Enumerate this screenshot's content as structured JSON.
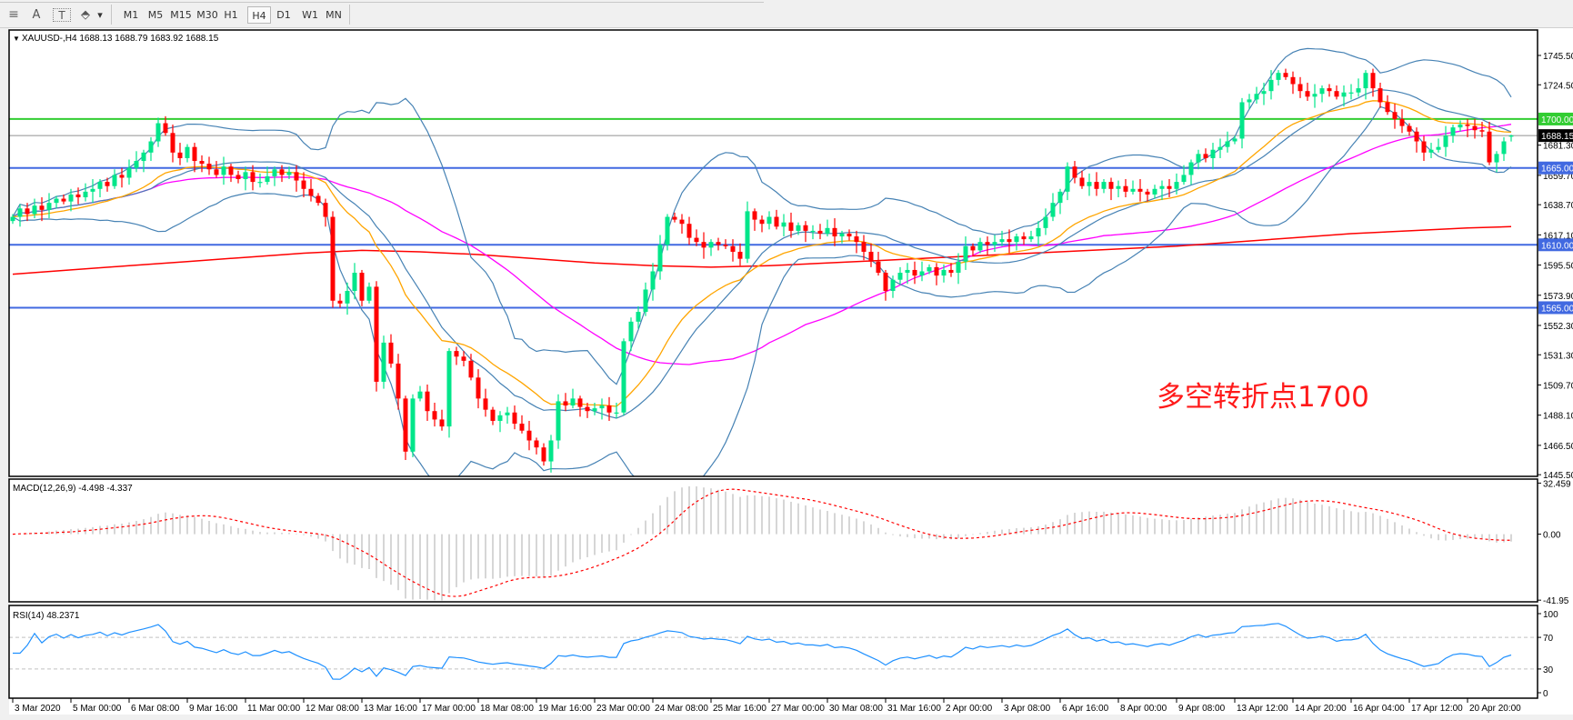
{
  "toolbar": {
    "tools": [
      {
        "name": "fibonacci-icon",
        "glyph": "≡"
      },
      {
        "name": "text-icon",
        "glyph": "A"
      },
      {
        "name": "text-label-icon",
        "glyph": "T"
      },
      {
        "name": "arrows-icon",
        "glyph": "⬘"
      }
    ],
    "dropdown_glyph": "▾",
    "timeframes": [
      "M1",
      "M5",
      "M15",
      "M30",
      "H1",
      "H4",
      "D1",
      "W1",
      "MN"
    ],
    "selected_timeframe": "H4"
  },
  "chart": {
    "header": "XAUUSD-,H4  1688.13 1688.79 1683.92 1688.15",
    "annotation": "多空转折点1700",
    "annotation_color": "#FF1A1A",
    "macd_label": "MACD(12,26,9) -4.498 -4.337",
    "rsi_label": "RSI(14) 48.2371"
  },
  "chart_data": {
    "type": "candlestick",
    "symbol": "XAUUSD-",
    "timeframe": "H4",
    "ylim": [
      1444.3,
      1763.7
    ],
    "bull_color": "#00E68A",
    "bear_color": "#FF0000",
    "closes": [
      1630,
      1636,
      1632,
      1638,
      1635,
      1640,
      1643,
      1641,
      1646,
      1644,
      1648,
      1650,
      1655,
      1652,
      1660,
      1658,
      1665,
      1670,
      1676,
      1684,
      1697,
      1690,
      1676,
      1672,
      1680,
      1670,
      1668,
      1664,
      1660,
      1666,
      1660,
      1657,
      1662,
      1655,
      1655,
      1659,
      1664,
      1660,
      1662,
      1656,
      1650,
      1645,
      1640,
      1630,
      1570,
      1568,
      1577,
      1590,
      1570,
      1580,
      1512,
      1540,
      1525,
      1500,
      1462,
      1500,
      1505,
      1491,
      1485,
      1480,
      1534,
      1530,
      1527,
      1515,
      1500,
      1492,
      1484,
      1488,
      1490,
      1482,
      1477,
      1470,
      1465,
      1455,
      1470,
      1498,
      1495,
      1500,
      1494,
      1491,
      1493,
      1495,
      1490,
      1490,
      1541,
      1555,
      1562,
      1578,
      1591,
      1610,
      1630,
      1628,
      1625,
      1615,
      1612,
      1608,
      1612,
      1610,
      1609,
      1605,
      1600,
      1634,
      1628,
      1625,
      1630,
      1623,
      1626,
      1620,
      1624,
      1620,
      1620,
      1618,
      1622,
      1616,
      1618,
      1616,
      1612,
      1605,
      1598,
      1590,
      1577,
      1585,
      1590,
      1592,
      1588,
      1591,
      1594,
      1588,
      1592,
      1590,
      1598,
      1609,
      1606,
      1612,
      1610,
      1612,
      1614,
      1612,
      1616,
      1614,
      1616,
      1622,
      1630,
      1640,
      1648,
      1666,
      1658,
      1652,
      1655,
      1650,
      1655,
      1650,
      1652,
      1648,
      1650,
      1648,
      1646,
      1650,
      1652,
      1650,
      1655,
      1660,
      1669,
      1675,
      1672,
      1678,
      1680,
      1684,
      1686,
      1712,
      1714,
      1718,
      1720,
      1728,
      1733,
      1730,
      1725,
      1720,
      1716,
      1718,
      1722,
      1720,
      1716,
      1719,
      1719,
      1722,
      1733,
      1722,
      1712,
      1705,
      1700,
      1695,
      1691,
      1684,
      1676,
      1678,
      1680,
      1688,
      1694,
      1696,
      1695,
      1692,
      1691,
      1669,
      1675,
      1684,
      1688.15
    ],
    "last_bar": {
      "open": 1688.13,
      "high": 1688.79,
      "low": 1683.92,
      "close": 1688.15
    },
    "long_ma_at_ticks": [
      1589,
      1592,
      1595,
      1598,
      1601,
      1604,
      1606,
      1605,
      1603,
      1600,
      1597,
      1595,
      1594,
      1595,
      1597,
      1599,
      1601,
      1603,
      1605,
      1607,
      1609,
      1612,
      1615,
      1618,
      1620,
      1622
    ],
    "long_ma_last": 1623,
    "indicator_colors": {
      "ma_fast": "#FFA500",
      "bollinger": "#4682B4",
      "ma_mid": "#FF00FF",
      "ma_long": "#FF0000"
    },
    "bollinger": {
      "period": 20,
      "deviation": 2
    },
    "horizontal_lines": [
      {
        "price": 1700.0,
        "label": "1700.00",
        "color": "#32CD32"
      },
      {
        "price": 1665.0,
        "label": "1665.00",
        "color": "#4169E1"
      },
      {
        "price": 1610.0,
        "label": "1610.00",
        "color": "#4169E1"
      },
      {
        "price": 1565.0,
        "label": "1565.00",
        "color": "#4169E1"
      }
    ],
    "current_price": {
      "price": 1688.15,
      "label": "1688.15",
      "color": "#000000"
    },
    "price_ticks": [
      {
        "v": 1745.5,
        "t": "1745.50"
      },
      {
        "v": 1724.5,
        "t": "1724.50"
      },
      {
        "v": 1681.3,
        "t": "1681.30"
      },
      {
        "v": 1659.7,
        "t": "1659.70"
      },
      {
        "v": 1638.7,
        "t": "1638.70"
      },
      {
        "v": 1617.1,
        "t": "1617.10"
      },
      {
        "v": 1595.5,
        "t": "1595.50"
      },
      {
        "v": 1573.9,
        "t": "1573.90"
      },
      {
        "v": 1552.3,
        "t": "1552.30"
      },
      {
        "v": 1531.3,
        "t": "1531.30"
      },
      {
        "v": 1509.7,
        "t": "1509.70"
      },
      {
        "v": 1488.1,
        "t": "1488.10"
      },
      {
        "v": 1466.5,
        "t": "1466.50"
      },
      {
        "v": 1445.5,
        "t": "1445.50"
      }
    ],
    "x_ticks": [
      "3 Mar 2020",
      "5 Mar 00:00",
      "6 Mar 08:00",
      "9 Mar 16:00",
      "11 Mar 00:00",
      "12 Mar 08:00",
      "13 Mar 16:00",
      "17 Mar 00:00",
      "18 Mar 08:00",
      "19 Mar 16:00",
      "23 Mar 00:00",
      "24 Mar 08:00",
      "25 Mar 16:00",
      "27 Mar 00:00",
      "30 Mar 08:00",
      "31 Mar 16:00",
      "2 Apr 00:00",
      "3 Apr 08:00",
      "6 Apr 16:00",
      "8 Apr 00:00",
      "9 Apr 08:00",
      "13 Apr 12:00",
      "14 Apr 20:00",
      "16 Apr 04:00",
      "17 Apr 12:00",
      "20 Apr 20:00"
    ],
    "macd": {
      "params": [
        12,
        26,
        9
      ],
      "ylim": [
        -43,
        35
      ],
      "ticks": [
        {
          "v": 32.459,
          "t": "32.459"
        },
        {
          "v": 0,
          "t": "0.00"
        },
        {
          "v": -41.95,
          "t": "-41.95"
        }
      ],
      "histogram_color": "#C0C0C0",
      "signal_color": "#FF0000"
    },
    "rsi": {
      "period": 14,
      "ylim": [
        0,
        100
      ],
      "levels": [
        70,
        30
      ],
      "ticks": [
        {
          "v": 100,
          "t": "100"
        },
        {
          "v": 70,
          "t": "70"
        },
        {
          "v": 30,
          "t": "30"
        },
        {
          "v": 0,
          "t": "0"
        }
      ],
      "color": "#1E90FF"
    }
  }
}
